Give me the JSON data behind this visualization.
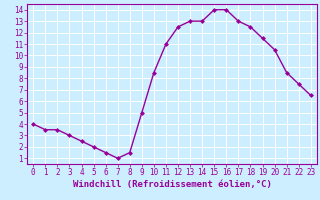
{
  "x": [
    0,
    1,
    2,
    3,
    4,
    5,
    6,
    7,
    8,
    9,
    10,
    11,
    12,
    13,
    14,
    15,
    16,
    17,
    18,
    19,
    20,
    21,
    22,
    23
  ],
  "y": [
    4.0,
    3.5,
    3.5,
    3.0,
    2.5,
    2.0,
    1.5,
    1.0,
    1.5,
    5.0,
    8.5,
    11.0,
    12.5,
    13.0,
    13.0,
    14.0,
    14.0,
    13.0,
    12.5,
    11.5,
    10.5,
    8.5,
    7.5,
    6.5
  ],
  "line_color": "#990099",
  "marker": "D",
  "marker_size": 2.0,
  "line_width": 1.0,
  "xlabel": "Windchill (Refroidissement éolien,°C)",
  "xlabel_fontsize": 6.5,
  "xlim": [
    -0.5,
    23.5
  ],
  "ylim": [
    0.5,
    14.5
  ],
  "xticks": [
    0,
    1,
    2,
    3,
    4,
    5,
    6,
    7,
    8,
    9,
    10,
    11,
    12,
    13,
    14,
    15,
    16,
    17,
    18,
    19,
    20,
    21,
    22,
    23
  ],
  "yticks": [
    1,
    2,
    3,
    4,
    5,
    6,
    7,
    8,
    9,
    10,
    11,
    12,
    13,
    14
  ],
  "tick_fontsize": 5.5,
  "background_color": "#cceeff",
  "grid_color": "#ffffff",
  "tick_color": "#990099",
  "label_color": "#990099",
  "spine_color": "#990099"
}
